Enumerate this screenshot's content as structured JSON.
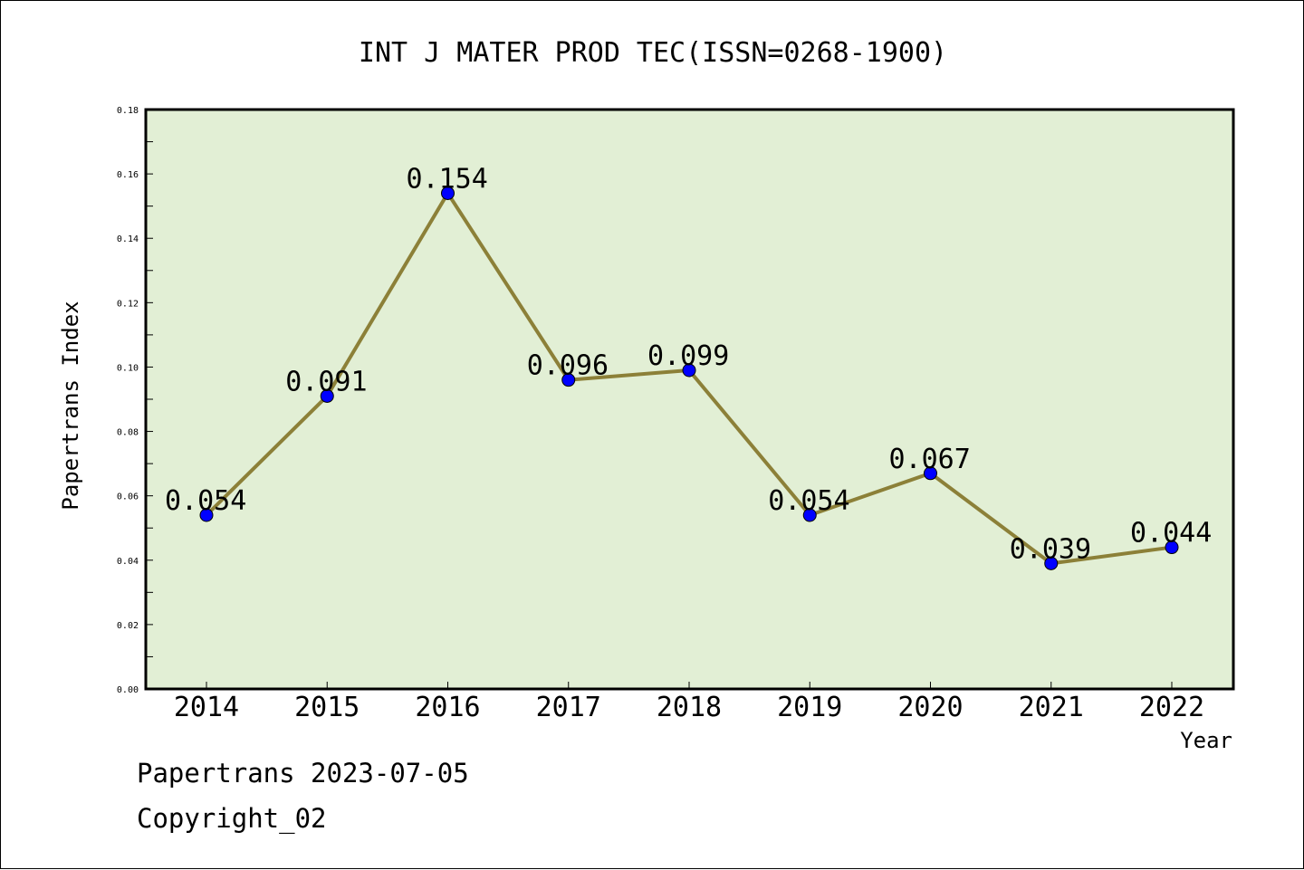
{
  "chart_data": {
    "type": "line",
    "title": "INT J MATER PROD TEC(ISSN=0268-1900)",
    "xlabel": "Year",
    "ylabel": "Papertrans Index",
    "categories": [
      "2014",
      "2015",
      "2016",
      "2017",
      "2018",
      "2019",
      "2020",
      "2021",
      "2022"
    ],
    "series": [
      {
        "values": [
          0.054,
          0.091,
          0.154,
          0.096,
          0.099,
          0.054,
          0.067,
          0.039,
          0.044
        ],
        "labels": [
          "0.054",
          "0.091",
          "0.154",
          "0.096",
          "0.099",
          "0.054",
          "0.067",
          "0.039",
          "0.044"
        ]
      }
    ],
    "ylim": [
      0,
      0.18
    ],
    "yticks": [
      "0.00",
      "0.02",
      "0.04",
      "0.06",
      "0.08",
      "0.10",
      "0.12",
      "0.14",
      "0.16",
      "0.18"
    ],
    "grid": false,
    "legend": "none",
    "colors": {
      "plot_background": "#e2efd5",
      "line": "#8c8038",
      "marker": "#0000ff",
      "marker_edge": "#000000"
    }
  },
  "footer": {
    "line1": "Papertrans 2023-07-05",
    "line2": "Copyright_02"
  }
}
